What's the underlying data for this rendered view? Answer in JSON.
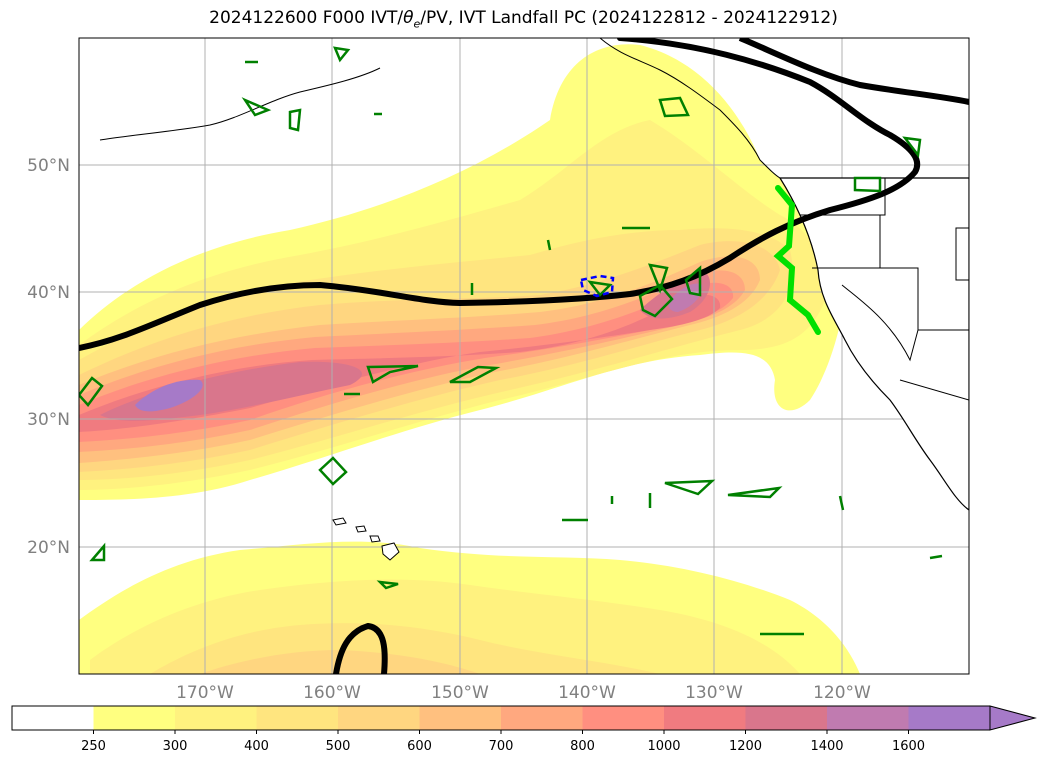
{
  "title": {
    "prefix": "2024122600 F000 IVT/",
    "theta": "θ",
    "theta_sub": "e",
    "suffix": "/PV, IVT Landfall PC (2024122812 - 2024122912)"
  },
  "lat_labels": [
    "50°N",
    "40°N",
    "30°N",
    "20°N"
  ],
  "lon_labels": [
    "170°W",
    "160°W",
    "150°W",
    "140°W",
    "130°W",
    "120°W"
  ],
  "colorbar": {
    "ticks": [
      "250",
      "300",
      "400",
      "500",
      "600",
      "700",
      "800",
      "1000",
      "1200",
      "1400",
      "1600"
    ],
    "colors": [
      "#ffffff",
      "#ffff80",
      "#fff27f",
      "#ffe57f",
      "#ffd680",
      "#ffc07f",
      "#ffa87f",
      "#ff8f80",
      "#f07b80",
      "#d9768c",
      "#c07bb0",
      "#a67ac8"
    ],
    "extend": "max"
  },
  "colors": {
    "landfall_line": "#00e000",
    "pv_contour": "#008000",
    "neg_contour": "#0000ff",
    "theta_contour": "#000000",
    "grid": "#b0b0b0",
    "axis_label": "#808080"
  }
}
